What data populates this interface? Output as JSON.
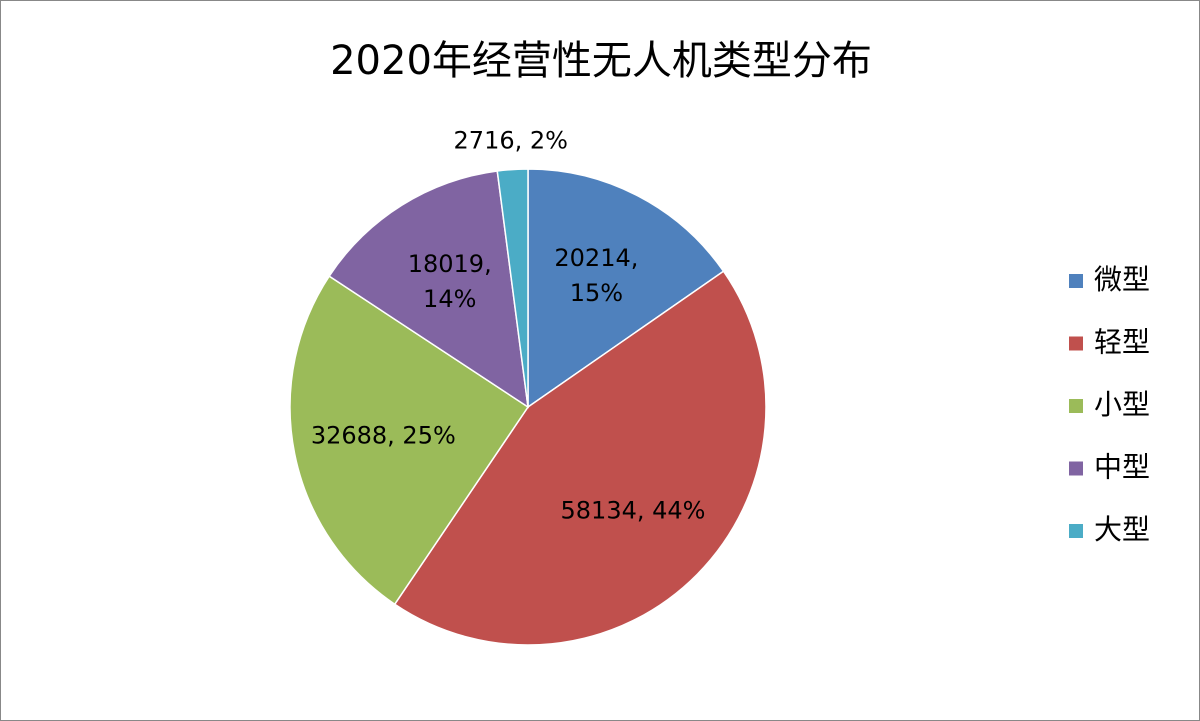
{
  "chart_data": {
    "type": "pie",
    "title": "2020年经营性无人机类型分布",
    "categories": [
      "微型",
      "轻型",
      "小型",
      "中型",
      "大型"
    ],
    "values": [
      20214,
      58134,
      32688,
      18019,
      2716
    ],
    "value_labels": [
      "20214, 15%",
      "58134, 44%",
      "32688, 25%",
      "18019, 14%",
      "2716, 2%"
    ],
    "colors": [
      "#4f81bd",
      "#c0504d",
      "#9bbb59",
      "#8064a2",
      "#4bacc6"
    ],
    "legend": "right"
  }
}
